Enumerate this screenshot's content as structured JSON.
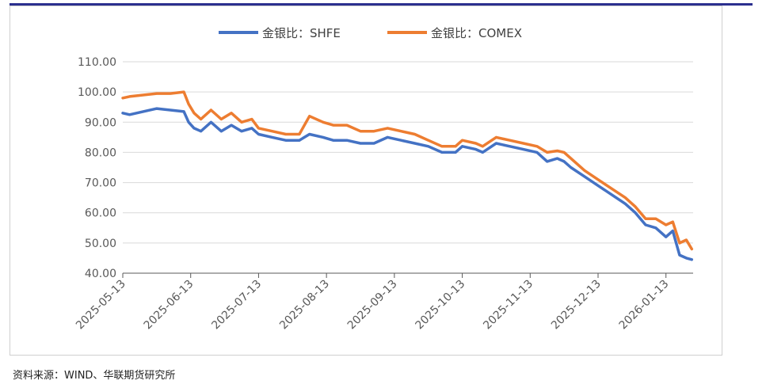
{
  "source_note": "资料来源：WIND、华联期货研究所",
  "colors": {
    "shfe": "#4472C4",
    "comex": "#ED7D31",
    "grid": "#d9d9d9",
    "axis": "#595959",
    "text": "#595959"
  },
  "chart_data": {
    "type": "line",
    "title": "",
    "legend_position": "top-center",
    "ylim": [
      40,
      110
    ],
    "yticks": [
      "110.00",
      "100.00",
      "90.00",
      "80.00",
      "70.00",
      "60.00",
      "50.00",
      "40.00"
    ],
    "xlim": [
      0,
      8.4
    ],
    "xticks": [
      "2025-05-13",
      "2025-06-13",
      "2025-07-13",
      "2025-08-13",
      "2025-09-13",
      "2025-10-13",
      "2025-11-13",
      "2025-12-13",
      "2026-01-13"
    ],
    "series": [
      {
        "name": "金银比：SHFE",
        "x": [
          0,
          0.1,
          0.3,
          0.5,
          0.7,
          0.9,
          0.97,
          1.05,
          1.15,
          1.3,
          1.45,
          1.6,
          1.75,
          1.9,
          2.0,
          2.2,
          2.4,
          2.6,
          2.75,
          2.95,
          3.1,
          3.3,
          3.5,
          3.7,
          3.9,
          4.1,
          4.3,
          4.5,
          4.7,
          4.9,
          5.0,
          5.2,
          5.3,
          5.5,
          5.7,
          5.9,
          6.1,
          6.25,
          6.4,
          6.5,
          6.6,
          6.8,
          7.0,
          7.2,
          7.4,
          7.55,
          7.7,
          7.85,
          8.0,
          8.1,
          8.2,
          8.3,
          8.38
        ],
        "values": [
          93,
          92.5,
          93.5,
          94.5,
          94,
          93.5,
          90,
          88,
          87,
          90,
          87,
          89,
          87,
          88,
          86,
          85,
          84,
          84,
          86,
          85,
          84,
          84,
          83,
          83,
          85,
          84,
          83,
          82,
          80,
          80,
          82,
          81,
          80,
          83,
          82,
          81,
          80,
          77,
          78,
          77,
          75,
          72,
          69,
          66,
          63,
          60,
          56,
          55,
          52,
          54,
          46,
          45,
          44.5
        ]
      },
      {
        "name": "金银比：COMEX",
        "x": [
          0,
          0.1,
          0.3,
          0.5,
          0.7,
          0.9,
          0.97,
          1.05,
          1.15,
          1.3,
          1.45,
          1.6,
          1.75,
          1.9,
          2.0,
          2.2,
          2.4,
          2.6,
          2.75,
          2.95,
          3.1,
          3.3,
          3.5,
          3.7,
          3.9,
          4.1,
          4.3,
          4.5,
          4.7,
          4.9,
          5.0,
          5.2,
          5.3,
          5.5,
          5.7,
          5.9,
          6.1,
          6.25,
          6.4,
          6.5,
          6.6,
          6.8,
          7.0,
          7.2,
          7.4,
          7.55,
          7.7,
          7.85,
          8.0,
          8.1,
          8.2,
          8.3,
          8.38
        ],
        "values": [
          98,
          98.5,
          99,
          99.5,
          99.5,
          100,
          96,
          93,
          91,
          94,
          91,
          93,
          90,
          91,
          88,
          87,
          86,
          86,
          92,
          90,
          89,
          89,
          87,
          87,
          88,
          87,
          86,
          84,
          82,
          82,
          84,
          83,
          82,
          85,
          84,
          83,
          82,
          80,
          80.5,
          80,
          78,
          74,
          71,
          68,
          65,
          62,
          58,
          58,
          56,
          57,
          50,
          51,
          48
        ]
      }
    ]
  }
}
